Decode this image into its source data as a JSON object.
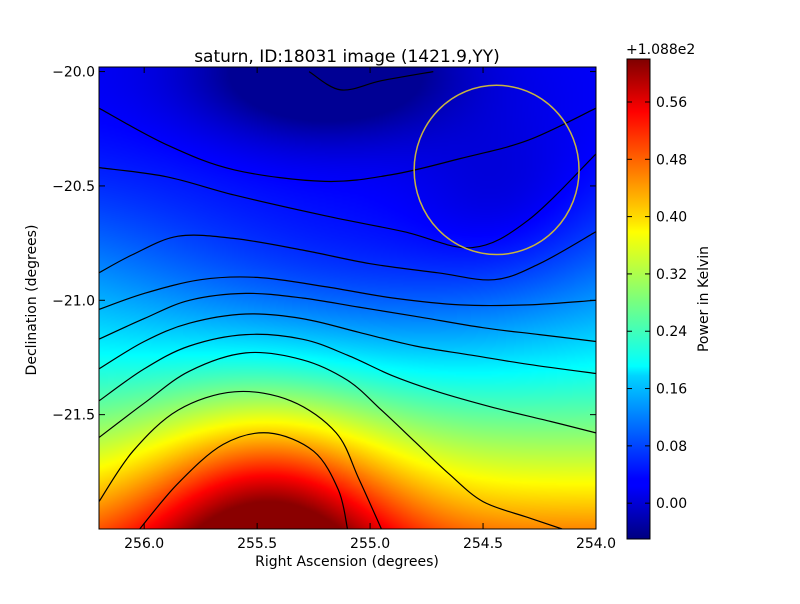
{
  "chart_data": {
    "type": "heatmap",
    "title": "saturn, ID:18031 image (1421.9,YY)",
    "xlabel": "Right Ascension (degrees)",
    "ylabel": "Declination (degrees)",
    "xlim": [
      256.2,
      254.0
    ],
    "ylim": [
      -22.0,
      -19.98
    ],
    "x_ticks": [
      {
        "value": 256.0,
        "label": "256.0"
      },
      {
        "value": 255.5,
        "label": "255.5"
      },
      {
        "value": 255.0,
        "label": "255.0"
      },
      {
        "value": 254.5,
        "label": "254.5"
      },
      {
        "value": 254.0,
        "label": "254.0"
      }
    ],
    "y_ticks": [
      {
        "value": -20.0,
        "label": "−20.0"
      },
      {
        "value": -20.5,
        "label": "−20.5"
      },
      {
        "value": -21.0,
        "label": "−21.0"
      },
      {
        "value": -21.5,
        "label": "−21.5"
      }
    ],
    "colorbar": {
      "label": "Power in Kelvin",
      "offset_label": "+1.088e2",
      "colormap": "jet",
      "range": [
        -0.05,
        0.62
      ],
      "ticks": [
        {
          "value": 0.0,
          "label": "0.00"
        },
        {
          "value": 0.08,
          "label": "0.08"
        },
        {
          "value": 0.16,
          "label": "0.16"
        },
        {
          "value": 0.24,
          "label": "0.24"
        },
        {
          "value": 0.32,
          "label": "0.32"
        },
        {
          "value": 0.4,
          "label": "0.40"
        },
        {
          "value": 0.48,
          "label": "0.48"
        },
        {
          "value": 0.56,
          "label": "0.56"
        }
      ]
    },
    "contour_color": "#000000",
    "contours": [
      {
        "points": [
          [
            255.27,
            -20.0
          ],
          [
            255.13,
            -20.08
          ],
          [
            254.95,
            -20.04
          ],
          [
            254.72,
            -20.0
          ]
        ]
      },
      {
        "points": [
          [
            256.2,
            -20.16
          ],
          [
            255.9,
            -20.32
          ],
          [
            255.6,
            -20.43
          ],
          [
            255.2,
            -20.48
          ],
          [
            254.9,
            -20.45
          ],
          [
            254.6,
            -20.38
          ],
          [
            254.3,
            -20.3
          ],
          [
            254.0,
            -20.16
          ]
        ]
      },
      {
        "points": [
          [
            256.2,
            -20.42
          ],
          [
            255.9,
            -20.46
          ],
          [
            255.6,
            -20.54
          ],
          [
            255.2,
            -20.63
          ],
          [
            254.85,
            -20.7
          ],
          [
            254.55,
            -20.77
          ],
          [
            254.3,
            -20.65
          ],
          [
            254.0,
            -20.36
          ]
        ]
      },
      {
        "points": [
          [
            256.2,
            -20.88
          ],
          [
            256.05,
            -20.8
          ],
          [
            255.85,
            -20.72
          ],
          [
            255.6,
            -20.73
          ],
          [
            255.3,
            -20.78
          ],
          [
            255.0,
            -20.84
          ],
          [
            254.7,
            -20.88
          ],
          [
            254.45,
            -20.91
          ],
          [
            254.25,
            -20.84
          ],
          [
            254.0,
            -20.7
          ]
        ]
      },
      {
        "points": [
          [
            256.2,
            -21.04
          ],
          [
            256.0,
            -20.97
          ],
          [
            255.75,
            -20.91
          ],
          [
            255.5,
            -20.9
          ],
          [
            255.2,
            -20.94
          ],
          [
            254.9,
            -20.99
          ],
          [
            254.6,
            -21.02
          ],
          [
            254.3,
            -21.02
          ],
          [
            254.0,
            -21.0
          ]
        ]
      },
      {
        "points": [
          [
            256.2,
            -21.17
          ],
          [
            256.0,
            -21.08
          ],
          [
            255.8,
            -21.0
          ],
          [
            255.55,
            -20.97
          ],
          [
            255.3,
            -20.99
          ],
          [
            255.05,
            -21.03
          ],
          [
            254.8,
            -21.07
          ],
          [
            254.5,
            -21.12
          ],
          [
            254.25,
            -21.15
          ],
          [
            254.0,
            -21.18
          ]
        ]
      },
      {
        "points": [
          [
            256.2,
            -21.3
          ],
          [
            256.0,
            -21.18
          ],
          [
            255.8,
            -21.1
          ],
          [
            255.55,
            -21.06
          ],
          [
            255.3,
            -21.08
          ],
          [
            255.05,
            -21.14
          ],
          [
            254.8,
            -21.2
          ],
          [
            254.55,
            -21.24
          ],
          [
            254.3,
            -21.28
          ],
          [
            254.0,
            -21.32
          ]
        ]
      },
      {
        "points": [
          [
            256.2,
            -21.44
          ],
          [
            256.0,
            -21.3
          ],
          [
            255.8,
            -21.2
          ],
          [
            255.55,
            -21.15
          ],
          [
            255.3,
            -21.17
          ],
          [
            255.1,
            -21.24
          ],
          [
            254.9,
            -21.33
          ],
          [
            254.7,
            -21.4
          ],
          [
            254.45,
            -21.47
          ],
          [
            254.2,
            -21.53
          ],
          [
            254.0,
            -21.58
          ]
        ]
      },
      {
        "points": [
          [
            256.2,
            -21.6
          ],
          [
            256.0,
            -21.45
          ],
          [
            255.8,
            -21.31
          ],
          [
            255.55,
            -21.23
          ],
          [
            255.3,
            -21.26
          ],
          [
            255.1,
            -21.35
          ],
          [
            254.95,
            -21.48
          ],
          [
            254.8,
            -21.62
          ],
          [
            254.65,
            -21.76
          ],
          [
            254.5,
            -21.88
          ],
          [
            254.3,
            -21.95
          ],
          [
            254.15,
            -22.0
          ]
        ]
      },
      {
        "points": [
          [
            256.2,
            -21.88
          ],
          [
            256.05,
            -21.66
          ],
          [
            255.85,
            -21.48
          ],
          [
            255.6,
            -21.4
          ],
          [
            255.35,
            -21.44
          ],
          [
            255.15,
            -21.58
          ],
          [
            255.05,
            -21.78
          ],
          [
            254.95,
            -22.0
          ]
        ]
      },
      {
        "points": [
          [
            256.02,
            -22.0
          ],
          [
            255.85,
            -21.8
          ],
          [
            255.65,
            -21.63
          ],
          [
            255.45,
            -21.58
          ],
          [
            255.25,
            -21.66
          ],
          [
            255.14,
            -21.83
          ],
          [
            255.1,
            -22.0
          ]
        ]
      }
    ],
    "circle": {
      "center": [
        254.44,
        -20.43
      ],
      "radius_deg_x": 0.365,
      "radius_deg_y": 0.37,
      "color": "#c8b440"
    }
  }
}
